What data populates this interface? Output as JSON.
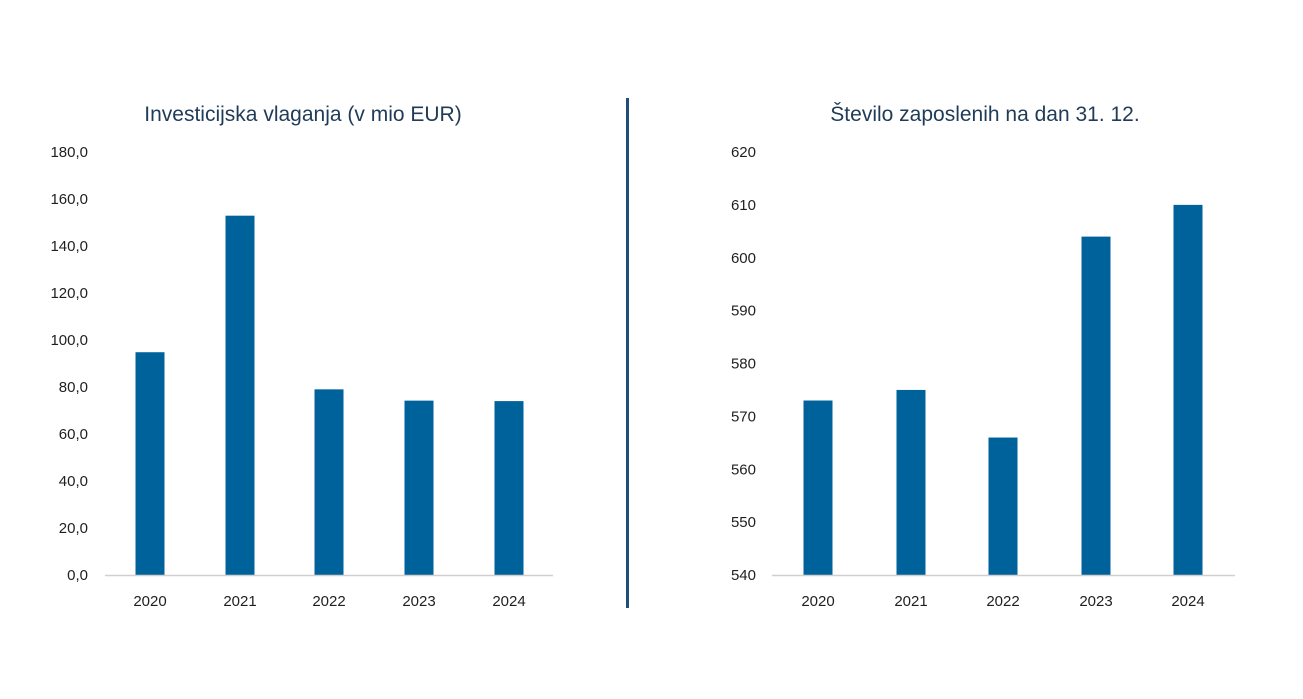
{
  "colors": {
    "bar": "#00629B",
    "divider": "#1f4e79",
    "axis": "#d0d0d0",
    "title": "#1f3b57"
  },
  "chart_data": [
    {
      "type": "bar",
      "title": "Investicijska vlaganja (v mio EUR)",
      "categories": [
        "2020",
        "2021",
        "2022",
        "2023",
        "2024"
      ],
      "values": [
        94.8,
        152.9,
        79.0,
        74.2,
        74.0
      ],
      "ylim": [
        0,
        180
      ],
      "yticks": [
        0,
        20,
        40,
        60,
        80,
        100,
        120,
        140,
        160,
        180
      ],
      "ytick_labels": [
        "0,0",
        "20,0",
        "40,0",
        "60,0",
        "80,0",
        "100,0",
        "120,0",
        "140,0",
        "160,0",
        "180,0"
      ],
      "xlabel": "",
      "ylabel": "",
      "grid": false,
      "legend": "none"
    },
    {
      "type": "bar",
      "title": "Število zaposlenih na dan 31. 12.",
      "categories": [
        "2020",
        "2021",
        "2022",
        "2023",
        "2024"
      ],
      "values": [
        573,
        575,
        566,
        604,
        610
      ],
      "ylim": [
        540,
        620
      ],
      "yticks": [
        540,
        550,
        560,
        570,
        580,
        590,
        600,
        610,
        620
      ],
      "ytick_labels": [
        "540",
        "550",
        "560",
        "570",
        "580",
        "590",
        "600",
        "610",
        "620"
      ],
      "xlabel": "",
      "ylabel": "",
      "grid": false,
      "legend": "none"
    }
  ]
}
